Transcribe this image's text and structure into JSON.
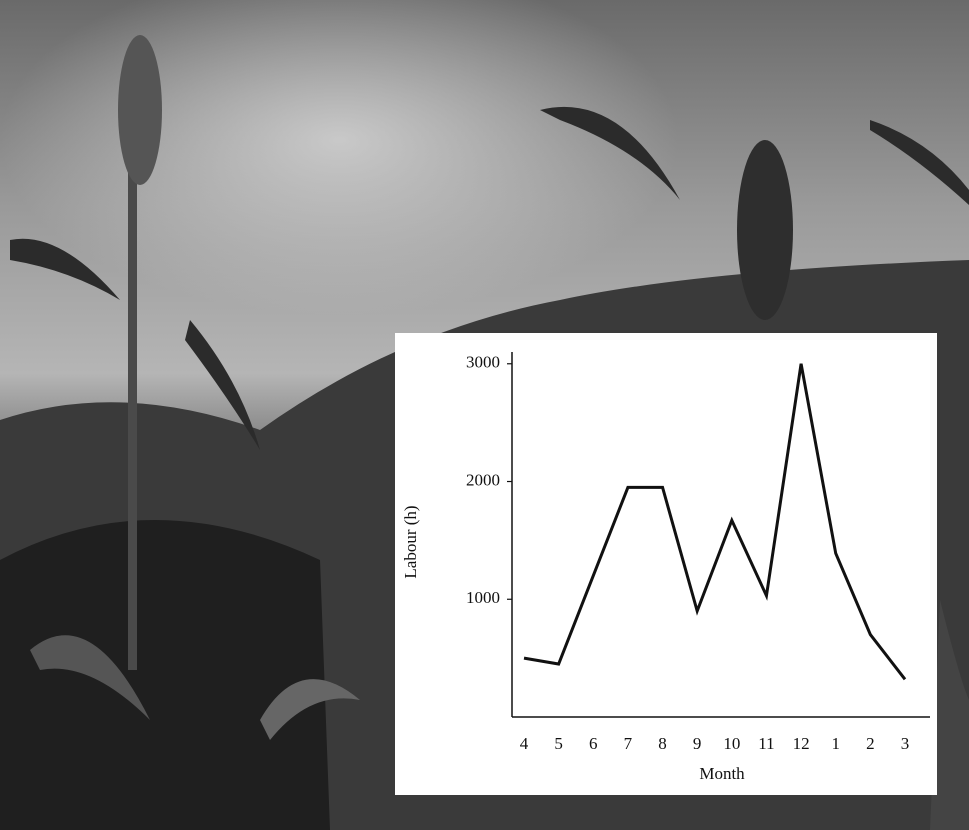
{
  "chart_data": {
    "type": "line",
    "categories": [
      "4",
      "5",
      "6",
      "7",
      "8",
      "9",
      "10",
      "11",
      "12",
      "1",
      "2",
      "3"
    ],
    "values": [
      500,
      450,
      1200,
      1950,
      1950,
      900,
      1670,
      1030,
      3000,
      1390,
      700,
      320
    ],
    "color": "#111111",
    "ylim": [
      0,
      3100
    ],
    "yticks": [
      1000,
      2000,
      3000
    ],
    "xlabel": "Month",
    "ylabel": "Labour (h)"
  }
}
